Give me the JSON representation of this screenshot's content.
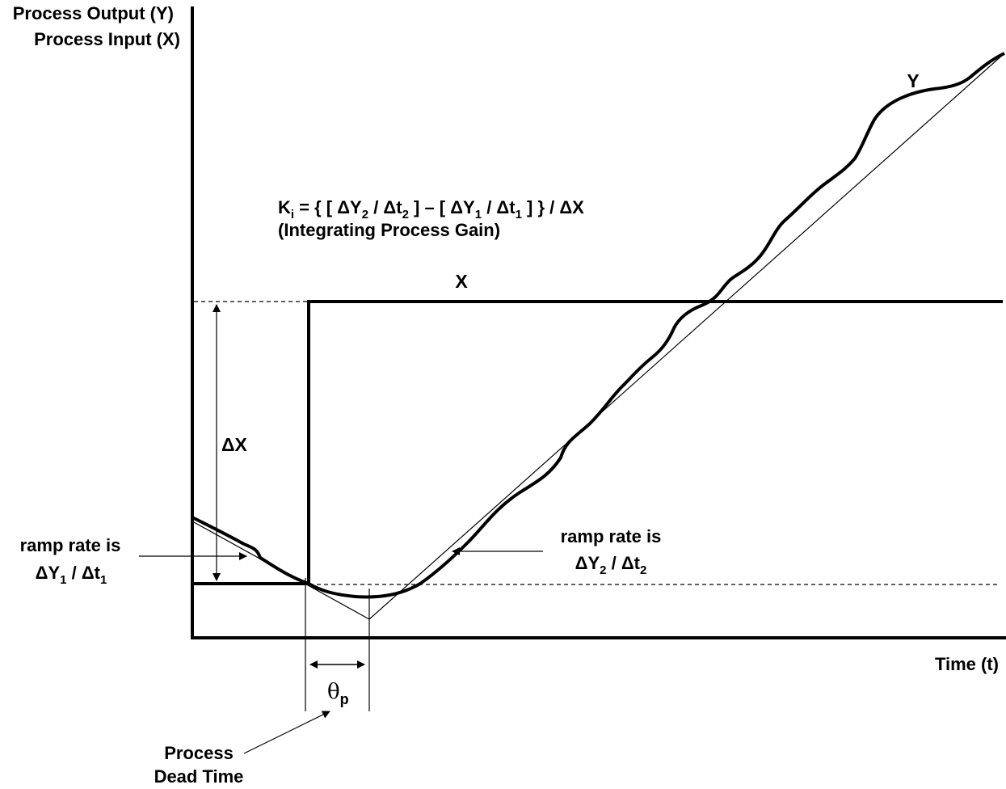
{
  "axes": {
    "y_label_line1": "Process Output (Y)",
    "y_label_line2": "Process Input (X)",
    "x_label": "Time (t)"
  },
  "signals": {
    "output_label": "Y",
    "input_label": "X"
  },
  "formula": {
    "gain_symbol": "K",
    "gain_subscript": "i",
    "part1": " = { [ ΔY",
    "sub2a": "2",
    "part2": " / Δt",
    "sub2b": "2",
    "part3": " ] – [ ΔY",
    "sub1a": "1",
    "part4": " / Δt",
    "sub1b": "1",
    "part5": " ] } / ΔX",
    "caption": "(Integrating Process Gain)"
  },
  "annotations": {
    "delta_x": "ΔX",
    "ramp1_line1": "ramp rate is",
    "ramp1_dy": "ΔY",
    "ramp1_dy_sub": "1",
    "ramp1_dt": " / Δt",
    "ramp1_dt_sub": "1",
    "ramp2_line1": "ramp rate is",
    "ramp2_dy": "ΔY",
    "ramp2_dy_sub": "2",
    "ramp2_dt": " / Δt",
    "ramp2_dt_sub": "2",
    "dead_time_symbol": "θ",
    "dead_time_sub": "p",
    "dead_time_line1": "Process",
    "dead_time_line2": "Dead Time"
  }
}
